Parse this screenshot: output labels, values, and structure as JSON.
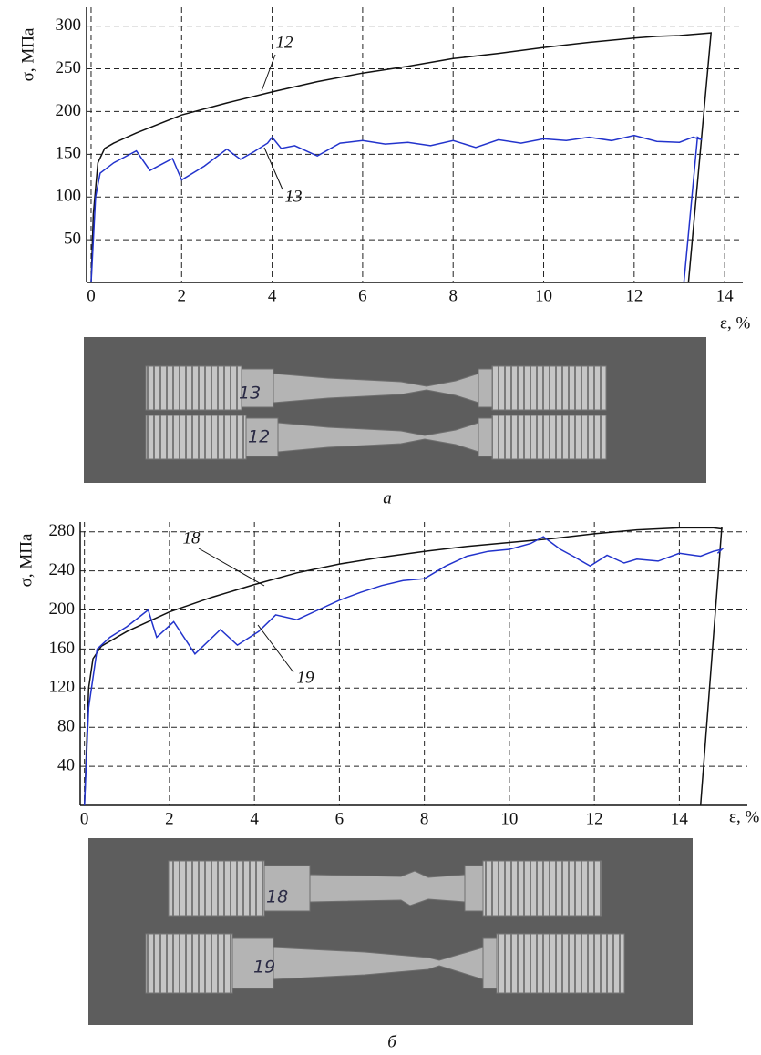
{
  "chart_data": [
    {
      "type": "line",
      "caption": "а",
      "ylabel": "σ, МПа",
      "xlabel": "ε, %",
      "xlim": [
        -0.1,
        14.4
      ],
      "ylim": [
        0,
        322
      ],
      "xticks": [
        0,
        2,
        4,
        6,
        8,
        10,
        12,
        14
      ],
      "yticks": [
        50,
        100,
        150,
        200,
        250,
        300
      ],
      "grid": true,
      "series": [
        {
          "name": "12",
          "color": "#111111",
          "x": [
            0,
            0.05,
            0.15,
            0.3,
            0.5,
            1,
            2,
            3,
            4,
            5,
            6,
            7,
            8,
            9,
            10,
            11,
            12,
            12.5,
            13,
            13.7,
            13.2
          ],
          "values": [
            0,
            80,
            140,
            157,
            163,
            175,
            196,
            210,
            223,
            235,
            245,
            253,
            262,
            268,
            275,
            281,
            286,
            288,
            289,
            292,
            0
          ]
        },
        {
          "name": "13",
          "color": "#2233cc",
          "x": [
            0,
            0.1,
            0.2,
            0.5,
            1,
            1.3,
            1.8,
            2,
            2.5,
            3,
            3.3,
            3.6,
            3.9,
            4,
            4.2,
            4.5,
            5,
            5.5,
            6,
            6.5,
            7,
            7.5,
            8,
            8.5,
            9,
            9.5,
            10,
            10.5,
            11,
            11.5,
            12,
            12.5,
            13,
            13.3,
            13.5,
            13.4,
            13.1
          ],
          "values": [
            0,
            100,
            128,
            140,
            154,
            131,
            145,
            120,
            136,
            156,
            144,
            153,
            163,
            170,
            157,
            160,
            148,
            163,
            166,
            162,
            164,
            160,
            166,
            158,
            167,
            163,
            168,
            166,
            170,
            166,
            172,
            165,
            164,
            170,
            167,
            170,
            0
          ]
        }
      ]
    },
    {
      "type": "line",
      "caption": "б",
      "ylabel": "σ, МПа",
      "xlabel": "ε, %",
      "xlim": [
        -0.1,
        15.6
      ],
      "ylim": [
        0,
        290
      ],
      "xticks": [
        0,
        2,
        4,
        6,
        8,
        10,
        12,
        14
      ],
      "yticks": [
        40,
        80,
        120,
        160,
        200,
        240,
        280
      ],
      "grid": true,
      "series": [
        {
          "name": "18",
          "color": "#111111",
          "x": [
            0,
            0.05,
            0.1,
            0.2,
            0.4,
            1,
            2,
            3,
            4,
            5,
            6,
            7,
            8,
            9,
            10,
            11,
            12,
            13,
            14,
            14.8,
            15,
            15,
            14.5
          ],
          "values": [
            0,
            60,
            120,
            150,
            163,
            178,
            198,
            213,
            226,
            238,
            247,
            254,
            260,
            265,
            269,
            273,
            278,
            282,
            284,
            284,
            283,
            285,
            0
          ]
        },
        {
          "name": "19",
          "color": "#2233cc",
          "x": [
            0,
            0.1,
            0.3,
            0.6,
            1,
            1.5,
            1.7,
            2.1,
            2.6,
            3.2,
            3.6,
            4.1,
            4.5,
            5,
            5.5,
            6,
            6.5,
            7,
            7.5,
            8,
            8.5,
            9,
            9.5,
            10,
            10.5,
            10.8,
            11.2,
            11.5,
            11.9,
            12.3,
            12.7,
            13,
            13.5,
            14,
            14.5,
            14.8,
            15,
            14.9
          ],
          "values": [
            0,
            100,
            160,
            172,
            183,
            200,
            172,
            188,
            155,
            180,
            164,
            178,
            195,
            190,
            200,
            210,
            218,
            225,
            230,
            232,
            245,
            255,
            260,
            262,
            268,
            275,
            262,
            255,
            245,
            256,
            248,
            252,
            250,
            258,
            255,
            260,
            262,
            258
          ]
        }
      ]
    }
  ]
}
